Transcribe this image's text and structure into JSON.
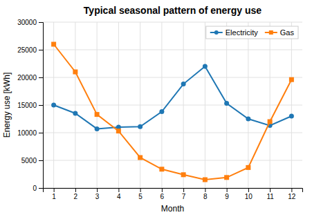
{
  "chart_data": {
    "type": "line",
    "title": "Typical seasonal pattern of energy use",
    "xlabel": "Month",
    "ylabel": "Energy use [kWh]",
    "x": [
      1,
      2,
      3,
      4,
      5,
      6,
      7,
      8,
      9,
      10,
      11,
      12
    ],
    "series": [
      {
        "name": "Electricity",
        "color": "#1f77b4",
        "marker": "circle",
        "values": [
          15000,
          13500,
          10700,
          11000,
          11100,
          13800,
          18800,
          22000,
          15300,
          12500,
          11300,
          13000
        ]
      },
      {
        "name": "Gas",
        "color": "#ff7f0e",
        "marker": "square",
        "values": [
          26000,
          21000,
          13300,
          10300,
          5500,
          3400,
          2400,
          1500,
          1900,
          3700,
          12000,
          19600
        ]
      }
    ],
    "xlim": [
      0.5,
      12.5
    ],
    "xticks": [
      1,
      2,
      3,
      4,
      5,
      6,
      7,
      8,
      9,
      10,
      11,
      12
    ],
    "ylim": [
      0,
      30000
    ],
    "yticks": [
      0,
      5000,
      10000,
      15000,
      20000,
      25000,
      30000
    ],
    "grid": true,
    "legend": "upper right"
  }
}
